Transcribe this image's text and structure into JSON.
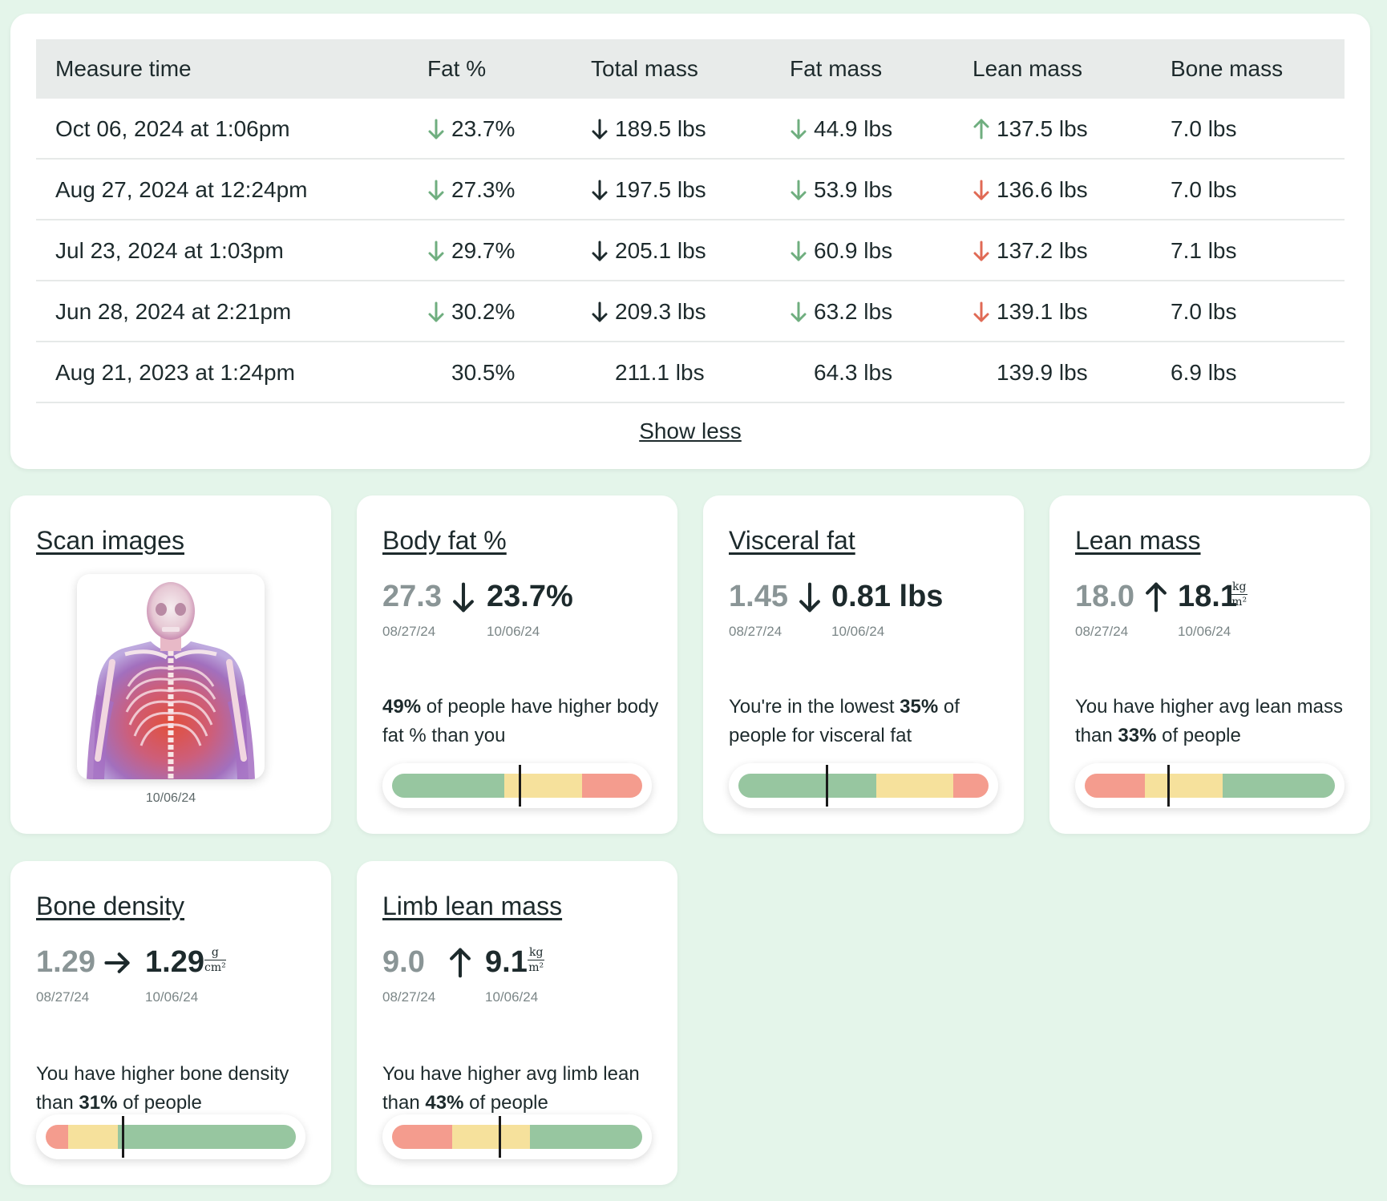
{
  "table": {
    "headers": [
      "Measure time",
      "Fat %",
      "Total mass",
      "Fat mass",
      "Lean mass",
      "Bone mass"
    ],
    "rows": [
      {
        "time": "Oct 06, 2024 at 1:06pm",
        "fat_pct": "23.7%",
        "fat_pct_dir": "down-good",
        "total": "189.5 lbs",
        "total_dir": "down-neutral",
        "fat_mass": "44.9 lbs",
        "fat_mass_dir": "down-good",
        "lean": "137.5 lbs",
        "lean_dir": "up-good",
        "bone": "7.0 lbs"
      },
      {
        "time": "Aug 27, 2024 at 12:24pm",
        "fat_pct": "27.3%",
        "fat_pct_dir": "down-good",
        "total": "197.5 lbs",
        "total_dir": "down-neutral",
        "fat_mass": "53.9 lbs",
        "fat_mass_dir": "down-good",
        "lean": "136.6 lbs",
        "lean_dir": "down-bad",
        "bone": "7.0 lbs"
      },
      {
        "time": "Jul 23, 2024 at 1:03pm",
        "fat_pct": "29.7%",
        "fat_pct_dir": "down-good",
        "total": "205.1 lbs",
        "total_dir": "down-neutral",
        "fat_mass": "60.9 lbs",
        "fat_mass_dir": "down-good",
        "lean": "137.2 lbs",
        "lean_dir": "down-bad",
        "bone": "7.1 lbs"
      },
      {
        "time": "Jun 28, 2024 at 2:21pm",
        "fat_pct": "30.2%",
        "fat_pct_dir": "down-good",
        "total": "209.3 lbs",
        "total_dir": "down-neutral",
        "fat_mass": "63.2 lbs",
        "fat_mass_dir": "down-good",
        "lean": "139.1 lbs",
        "lean_dir": "down-bad",
        "bone": "7.0 lbs"
      },
      {
        "time": "Aug 21, 2023 at 1:24pm",
        "fat_pct": "30.5%",
        "fat_pct_dir": "none",
        "total": "211.1 lbs",
        "total_dir": "none",
        "fat_mass": "64.3 lbs",
        "fat_mass_dir": "none",
        "lean": "139.9 lbs",
        "lean_dir": "none",
        "bone": "6.9 lbs"
      }
    ],
    "show_less": "Show less"
  },
  "colors": {
    "good_arrow": "#6fae7f",
    "bad_arrow": "#e06a55",
    "neutral_arrow": "#1d2a2c",
    "gauge_green": "#97c6a0",
    "gauge_yellow": "#f6e19c",
    "gauge_red": "#f49c8e"
  },
  "scan": {
    "title": "Scan images",
    "date": "10/06/24",
    "image_icon": "body-scan-skeleton-image"
  },
  "cards": [
    {
      "id": "body-fat",
      "title": "Body fat %",
      "prev": "27.3",
      "prev_date": "08/27/24",
      "direction": "down",
      "cur": "23.7%",
      "cur_date": "10/06/24",
      "unit_num": "",
      "unit_den": "",
      "desc_bold_first": "49%",
      "desc_pre": "",
      "desc_post": " of people have higher body fat % than you",
      "gauge": {
        "segments": [
          [
            "green",
            0.45
          ],
          [
            "yellow",
            0.31
          ],
          [
            "red",
            0.24
          ]
        ],
        "marker": 0.51
      }
    },
    {
      "id": "visceral-fat",
      "title": "Visceral fat",
      "prev": "1.45",
      "prev_date": "08/27/24",
      "direction": "down",
      "cur": "0.81 lbs",
      "cur_date": "10/06/24",
      "unit_num": "",
      "unit_den": "",
      "desc_pre": "You're in the lowest ",
      "desc_bold": "35%",
      "desc_post": " of people for visceral fat",
      "gauge": {
        "segments": [
          [
            "green",
            0.55
          ],
          [
            "yellow",
            0.31
          ],
          [
            "red",
            0.14
          ]
        ],
        "marker": 0.355
      }
    },
    {
      "id": "lean-mass",
      "title": "Lean mass",
      "prev": "18.0",
      "prev_date": "08/27/24",
      "direction": "up",
      "cur": "18.1",
      "cur_date": "10/06/24",
      "unit_num": "kg",
      "unit_den": "m²",
      "desc_pre": "You have higher avg lean mass than ",
      "desc_bold": "33%",
      "desc_post": " of people",
      "gauge": {
        "segments": [
          [
            "red",
            0.24
          ],
          [
            "yellow",
            0.31
          ],
          [
            "green",
            0.45
          ]
        ],
        "marker": 0.335
      }
    },
    {
      "id": "bone-density",
      "title": "Bone density",
      "prev": "1.29",
      "prev_date": "08/27/24",
      "direction": "flat",
      "cur": "1.29",
      "cur_date": "10/06/24",
      "unit_num": "g",
      "unit_den": "cm²",
      "desc_pre": "You have higher bone density than ",
      "desc_bold": "31%",
      "desc_post": " of people",
      "gauge": {
        "segments": [
          [
            "red",
            0.09
          ],
          [
            "yellow",
            0.2
          ],
          [
            "green",
            0.71
          ]
        ],
        "marker": 0.31
      }
    },
    {
      "id": "limb-lean-mass",
      "title": "Limb lean mass",
      "prev": "9.0",
      "prev_date": "08/27/24",
      "direction": "up",
      "cur": "9.1",
      "cur_date": "10/06/24",
      "unit_num": "kg",
      "unit_den": "m²",
      "desc_pre": "You have higher avg limb lean than ",
      "desc_bold": "43%",
      "desc_post": " of people",
      "gauge": {
        "segments": [
          [
            "red",
            0.24
          ],
          [
            "yellow",
            0.31
          ],
          [
            "green",
            0.45
          ]
        ],
        "marker": 0.43
      }
    }
  ]
}
